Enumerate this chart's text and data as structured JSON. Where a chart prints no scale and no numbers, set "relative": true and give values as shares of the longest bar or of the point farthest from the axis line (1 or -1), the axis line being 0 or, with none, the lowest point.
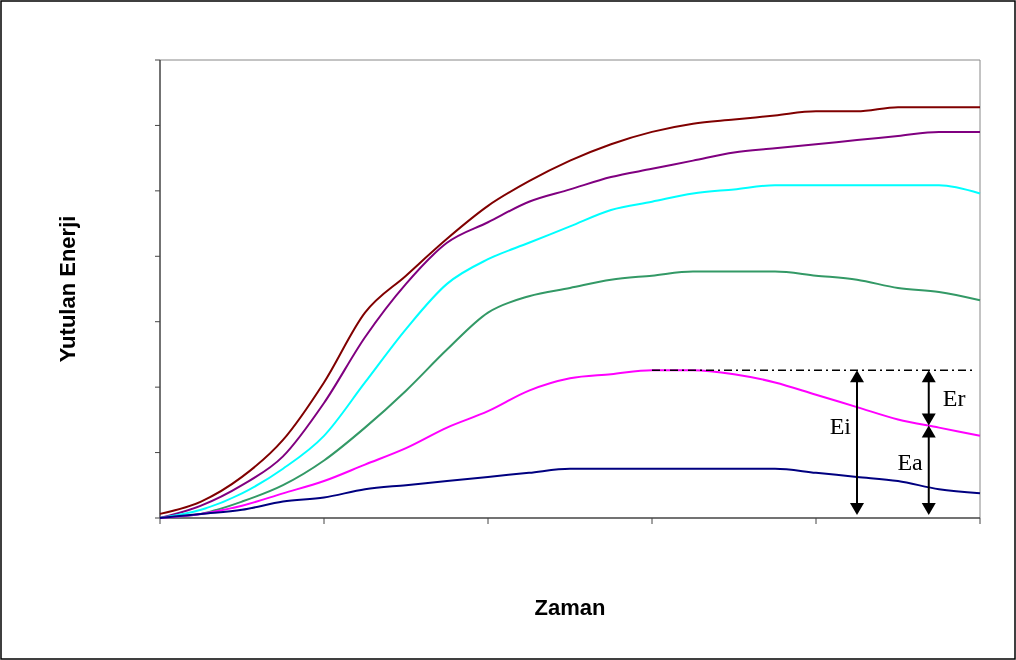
{
  "chart_data": {
    "type": "line",
    "relative": true,
    "xlabel": "Zaman",
    "ylabel": "Yutulan Enerji",
    "categories": [
      null,
      null,
      null,
      null,
      null,
      null,
      null,
      null,
      null,
      null,
      null,
      null,
      null,
      null,
      null,
      null,
      null,
      null,
      null,
      null,
      null
    ],
    "series": [
      {
        "color": "#800000",
        "values": [
          0.01,
          0.04,
          0.1,
          0.19,
          0.33,
          0.5,
          0.59,
          0.68,
          0.76,
          0.82,
          0.87,
          0.91,
          0.94,
          0.96,
          0.97,
          0.98,
          0.99,
          0.99,
          1.0,
          1.0,
          1.0
        ]
      },
      {
        "color": "#800080",
        "values": [
          0.0,
          0.03,
          0.08,
          0.15,
          0.28,
          0.44,
          0.57,
          0.67,
          0.72,
          0.77,
          0.8,
          0.83,
          0.85,
          0.87,
          0.89,
          0.9,
          0.91,
          0.92,
          0.93,
          0.94,
          0.94
        ]
      },
      {
        "color": "#00ffff",
        "values": [
          0.0,
          0.02,
          0.06,
          0.12,
          0.2,
          0.33,
          0.46,
          0.57,
          0.63,
          0.67,
          0.71,
          0.75,
          0.77,
          0.79,
          0.8,
          0.81,
          0.81,
          0.81,
          0.81,
          0.81,
          0.79
        ]
      },
      {
        "color": "#339966",
        "values": [
          0.0,
          0.01,
          0.04,
          0.08,
          0.14,
          0.22,
          0.31,
          0.41,
          0.5,
          0.54,
          0.56,
          0.58,
          0.59,
          0.6,
          0.6,
          0.6,
          0.59,
          0.58,
          0.56,
          0.55,
          0.53
        ]
      },
      {
        "color": "#ff00ff",
        "values": [
          0.0,
          0.01,
          0.03,
          0.06,
          0.09,
          0.13,
          0.17,
          0.22,
          0.26,
          0.31,
          0.34,
          0.35,
          0.36,
          0.36,
          0.35,
          0.33,
          0.3,
          0.27,
          0.24,
          0.22,
          0.2
        ]
      },
      {
        "color": "#000080",
        "values": [
          0.0,
          0.01,
          0.02,
          0.04,
          0.05,
          0.07,
          0.08,
          0.09,
          0.1,
          0.11,
          0.12,
          0.12,
          0.12,
          0.12,
          0.12,
          0.12,
          0.11,
          0.1,
          0.09,
          0.07,
          0.06
        ]
      }
    ],
    "ref_lines": [
      {
        "axis": "y",
        "value": 0.36,
        "color": "#000000",
        "line_style": "dashdot"
      }
    ],
    "annotations": [
      "Ei",
      "Er",
      "Ea"
    ]
  }
}
